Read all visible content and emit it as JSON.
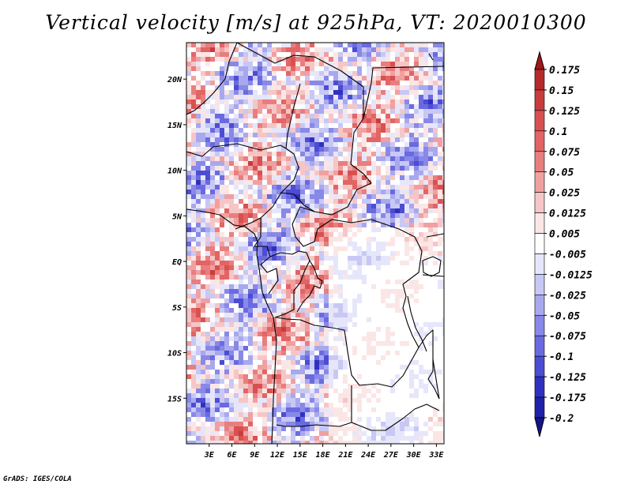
{
  "chart_data": {
    "type": "heatmap",
    "title": "Vertical velocity [m/s] at 925hPa, VT: 2020010300",
    "xlabel": "",
    "ylabel": "",
    "xlim": [
      0,
      34
    ],
    "ylim": [
      -20,
      24
    ],
    "x_ticks": [
      {
        "value": 3,
        "label": "3E"
      },
      {
        "value": 6,
        "label": "6E"
      },
      {
        "value": 9,
        "label": "9E"
      },
      {
        "value": 12,
        "label": "12E"
      },
      {
        "value": 15,
        "label": "15E"
      },
      {
        "value": 18,
        "label": "18E"
      },
      {
        "value": 21,
        "label": "21E"
      },
      {
        "value": 24,
        "label": "24E"
      },
      {
        "value": 27,
        "label": "27E"
      },
      {
        "value": 30,
        "label": "30E"
      },
      {
        "value": 33,
        "label": "33E"
      }
    ],
    "y_ticks": [
      {
        "value": 20,
        "label": "20N"
      },
      {
        "value": 15,
        "label": "15N"
      },
      {
        "value": 10,
        "label": "10N"
      },
      {
        "value": 5,
        "label": "5N"
      },
      {
        "value": 0,
        "label": "EQ"
      },
      {
        "value": -5,
        "label": "5S"
      },
      {
        "value": -10,
        "label": "10S"
      },
      {
        "value": -15,
        "label": "15S"
      }
    ],
    "colorbar": {
      "labels": [
        "0.175",
        "0.15",
        "0.125",
        "0.1",
        "0.075",
        "0.05",
        "0.025",
        "0.0125",
        "0.005",
        "-0.005",
        "-0.0125",
        "-0.025",
        "-0.05",
        "-0.075",
        "-0.1",
        "-0.125",
        "-0.175",
        "-0.2"
      ],
      "colors": [
        "#a01818",
        "#b42a2a",
        "#c83c3c",
        "#d85050",
        "#e26464",
        "#e87e7e",
        "#f0a0a0",
        "#f6c6c6",
        "#fbe6e6",
        "#ffffff",
        "#e6e6fb",
        "#c8c8f4",
        "#a8a8ee",
        "#8888e8",
        "#6a6ae0",
        "#4c4cd4",
        "#3030c0",
        "#2020a8",
        "#14148c"
      ]
    },
    "grid": false,
    "legend": "colorbar-right"
  },
  "footer": "GrADS: IGES/COLA"
}
